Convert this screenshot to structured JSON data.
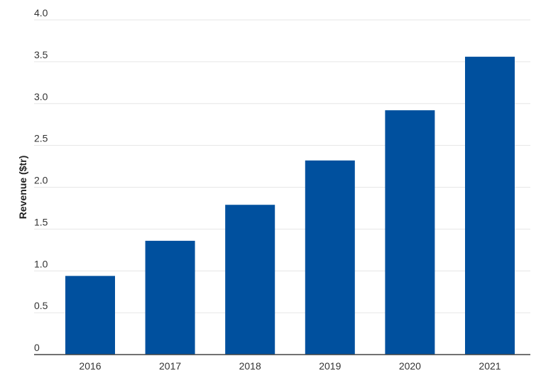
{
  "chart_data": {
    "type": "bar",
    "title": "",
    "xlabel": "",
    "ylabel": "Revenue ($tr)",
    "categories": [
      "2016",
      "2017",
      "2018",
      "2019",
      "2020",
      "2021"
    ],
    "values": [
      0.94,
      1.36,
      1.79,
      2.32,
      2.92,
      3.56
    ],
    "ylim": [
      0,
      4.0
    ],
    "yticks": [
      0,
      0.5,
      1.0,
      1.5,
      2.0,
      2.5,
      3.0,
      3.5,
      4.0
    ],
    "ytick_labels": [
      "0",
      "0.5",
      "1.0",
      "1.5",
      "2.0",
      "2.5",
      "3.0",
      "3.5",
      "4.0"
    ],
    "grid": true,
    "legend": "none",
    "bar_color": "#00509e"
  }
}
